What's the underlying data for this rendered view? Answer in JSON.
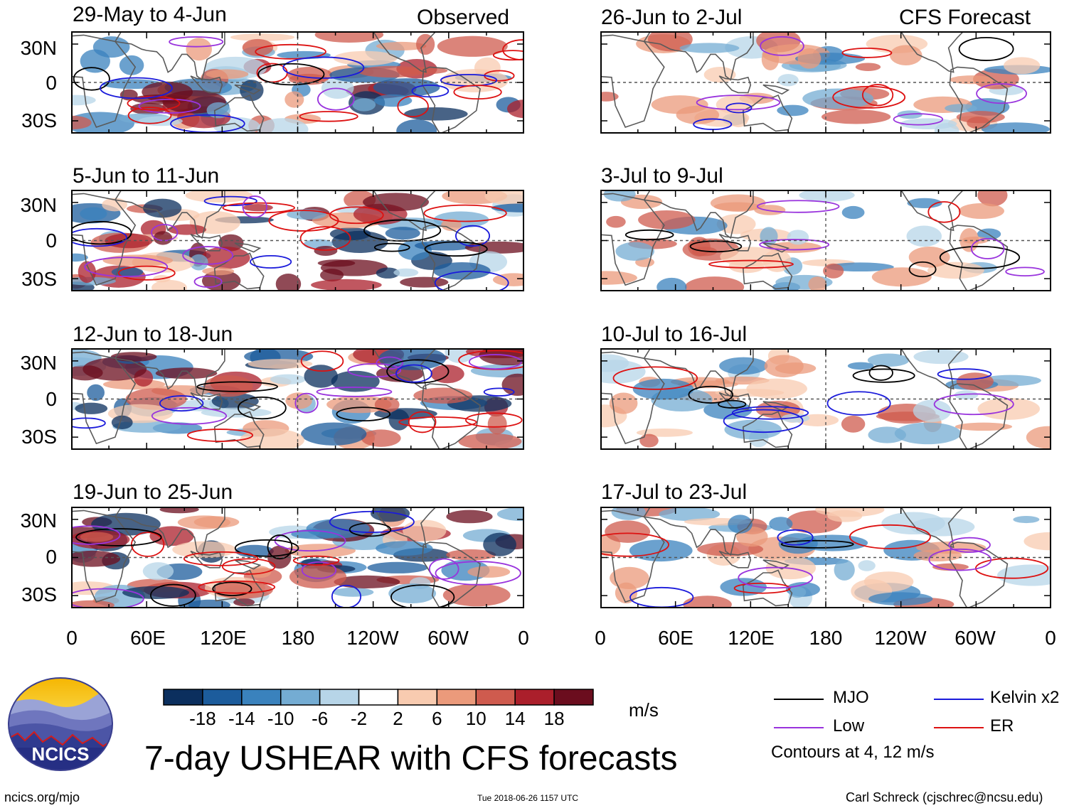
{
  "header": {
    "observed_label": "Observed",
    "forecast_label": "CFS Forecast"
  },
  "panels": {
    "left": [
      {
        "title": "29-May to 4-Jun"
      },
      {
        "title": "5-Jun to 11-Jun"
      },
      {
        "title": "12-Jun to 18-Jun"
      },
      {
        "title": "19-Jun to 25-Jun"
      }
    ],
    "right": [
      {
        "title": "26-Jun to 2-Jul"
      },
      {
        "title": "3-Jul to 9-Jul"
      },
      {
        "title": "10-Jul to 16-Jul"
      },
      {
        "title": "17-Jul to 23-Jul"
      }
    ]
  },
  "axes": {
    "lat_labels": [
      "30N",
      "0",
      "30S"
    ],
    "lon_labels": [
      "0",
      "60E",
      "120E",
      "180",
      "120W",
      "60W",
      "0"
    ]
  },
  "colorbar": {
    "tick_labels": [
      "-18",
      "-14",
      "-10",
      "-6",
      "-2",
      "2",
      "6",
      "10",
      "14",
      "18"
    ],
    "unit": "m/s",
    "colors": [
      "#0b2f5e",
      "#1c5c9c",
      "#3a82bd",
      "#74acd3",
      "#b7d5e8",
      "#ffffff",
      "#f8cbb0",
      "#eb9a7b",
      "#cf5b4e",
      "#ab1f2b",
      "#6b0d1e"
    ]
  },
  "legend": {
    "items": [
      {
        "label": "MJO",
        "color": "#000000"
      },
      {
        "label": "Kelvin x2",
        "color": "#1a1adb"
      },
      {
        "label": "Low",
        "color": "#9933dd"
      },
      {
        "label": "ER",
        "color": "#dd1111"
      }
    ],
    "note": "Contours at 4, 12 m/s"
  },
  "title": "7-day USHEAR with CFS forecasts",
  "logo_text": "NCICS",
  "footer": {
    "url": "ncics.org/mjo",
    "timestamp": "Tue 2018-06-26 1157 UTC",
    "credit": "Carl Schreck (cjschrec@ncsu.edu)"
  }
}
